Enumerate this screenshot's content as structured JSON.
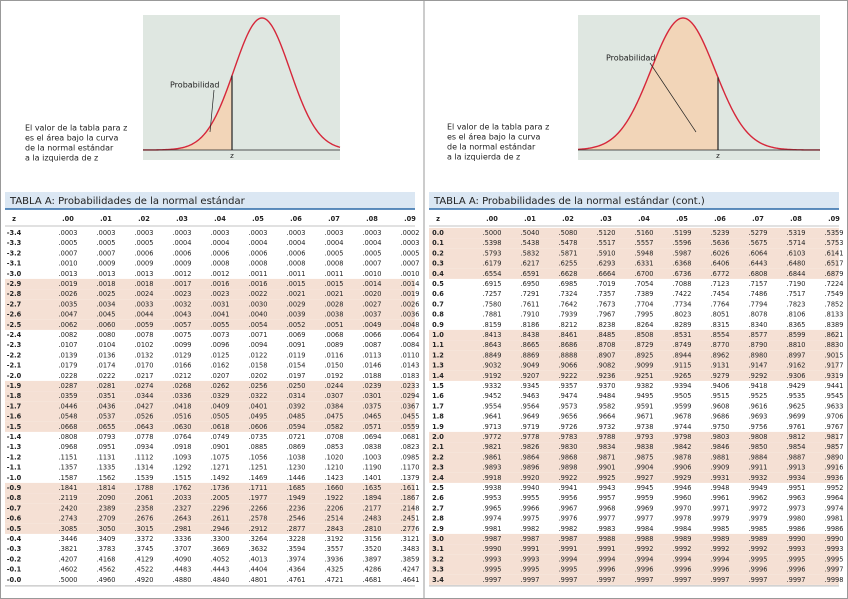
{
  "panels": [
    {
      "figure": {
        "label": "Probabilidad",
        "z_label": "z",
        "caption": [
          "El valor de la tabla para z",
          "es el área bajo la curva",
          "de la normal estándar",
          "a la izquierda de z"
        ]
      },
      "table": {
        "title": "TABLA A:  Probabilidades de la normal estándar",
        "header": [
          "z",
          ".00",
          ".01",
          ".02",
          ".03",
          ".04",
          ".05",
          ".06",
          ".07",
          ".08",
          ".09"
        ],
        "rows": [
          [
            "-3.4",
            ".0003",
            ".0003",
            ".0003",
            ".0003",
            ".0003",
            ".0003",
            ".0003",
            ".0003",
            ".0003",
            ".0002"
          ],
          [
            "-3.3",
            ".0005",
            ".0005",
            ".0005",
            ".0004",
            ".0004",
            ".0004",
            ".0004",
            ".0004",
            ".0004",
            ".0003"
          ],
          [
            "-3.2",
            ".0007",
            ".0007",
            ".0006",
            ".0006",
            ".0006",
            ".0006",
            ".0006",
            ".0005",
            ".0005",
            ".0005"
          ],
          [
            "-3.1",
            ".0010",
            ".0009",
            ".0009",
            ".0009",
            ".0008",
            ".0008",
            ".0008",
            ".0008",
            ".0007",
            ".0007"
          ],
          [
            "-3.0",
            ".0013",
            ".0013",
            ".0013",
            ".0012",
            ".0012",
            ".0011",
            ".0011",
            ".0011",
            ".0010",
            ".0010"
          ],
          [
            "-2.9",
            ".0019",
            ".0018",
            ".0018",
            ".0017",
            ".0016",
            ".0016",
            ".0015",
            ".0015",
            ".0014",
            ".0014"
          ],
          [
            "-2.8",
            ".0026",
            ".0025",
            ".0024",
            ".0023",
            ".0023",
            ".0022",
            ".0021",
            ".0021",
            ".0020",
            ".0019"
          ],
          [
            "-2.7",
            ".0035",
            ".0034",
            ".0033",
            ".0032",
            ".0031",
            ".0030",
            ".0029",
            ".0028",
            ".0027",
            ".0026"
          ],
          [
            "-2.6",
            ".0047",
            ".0045",
            ".0044",
            ".0043",
            ".0041",
            ".0040",
            ".0039",
            ".0038",
            ".0037",
            ".0036"
          ],
          [
            "-2.5",
            ".0062",
            ".0060",
            ".0059",
            ".0057",
            ".0055",
            ".0054",
            ".0052",
            ".0051",
            ".0049",
            ".0048"
          ],
          [
            "-2.4",
            ".0082",
            ".0080",
            ".0078",
            ".0075",
            ".0073",
            ".0071",
            ".0069",
            ".0068",
            ".0066",
            ".0064"
          ],
          [
            "-2.3",
            ".0107",
            ".0104",
            ".0102",
            ".0099",
            ".0096",
            ".0094",
            ".0091",
            ".0089",
            ".0087",
            ".0084"
          ],
          [
            "-2.2",
            ".0139",
            ".0136",
            ".0132",
            ".0129",
            ".0125",
            ".0122",
            ".0119",
            ".0116",
            ".0113",
            ".0110"
          ],
          [
            "-2.1",
            ".0179",
            ".0174",
            ".0170",
            ".0166",
            ".0162",
            ".0158",
            ".0154",
            ".0150",
            ".0146",
            ".0143"
          ],
          [
            "-2.0",
            ".0228",
            ".0222",
            ".0217",
            ".0212",
            ".0207",
            ".0202",
            ".0197",
            ".0192",
            ".0188",
            ".0183"
          ],
          [
            "-1.9",
            ".0287",
            ".0281",
            ".0274",
            ".0268",
            ".0262",
            ".0256",
            ".0250",
            ".0244",
            ".0239",
            ".0233"
          ],
          [
            "-1.8",
            ".0359",
            ".0351",
            ".0344",
            ".0336",
            ".0329",
            ".0322",
            ".0314",
            ".0307",
            ".0301",
            ".0294"
          ],
          [
            "-1.7",
            ".0446",
            ".0436",
            ".0427",
            ".0418",
            ".0409",
            ".0401",
            ".0392",
            ".0384",
            ".0375",
            ".0367"
          ],
          [
            "-1.6",
            ".0548",
            ".0537",
            ".0526",
            ".0516",
            ".0505",
            ".0495",
            ".0485",
            ".0475",
            ".0465",
            ".0455"
          ],
          [
            "-1.5",
            ".0668",
            ".0655",
            ".0643",
            ".0630",
            ".0618",
            ".0606",
            ".0594",
            ".0582",
            ".0571",
            ".0559"
          ],
          [
            "-1.4",
            ".0808",
            ".0793",
            ".0778",
            ".0764",
            ".0749",
            ".0735",
            ".0721",
            ".0708",
            ".0694",
            ".0681"
          ],
          [
            "-1.3",
            ".0968",
            ".0951",
            ".0934",
            ".0918",
            ".0901",
            ".0885",
            ".0869",
            ".0853",
            ".0838",
            ".0823"
          ],
          [
            "-1.2",
            ".1151",
            ".1131",
            ".1112",
            ".1093",
            ".1075",
            ".1056",
            ".1038",
            ".1020",
            ".1003",
            ".0985"
          ],
          [
            "-1.1",
            ".1357",
            ".1335",
            ".1314",
            ".1292",
            ".1271",
            ".1251",
            ".1230",
            ".1210",
            ".1190",
            ".1170"
          ],
          [
            "-1.0",
            ".1587",
            ".1562",
            ".1539",
            ".1515",
            ".1492",
            ".1469",
            ".1446",
            ".1423",
            ".1401",
            ".1379"
          ],
          [
            "-0.9",
            ".1841",
            ".1814",
            ".1788",
            ".1762",
            ".1736",
            ".1711",
            ".1685",
            ".1660",
            ".1635",
            ".1611"
          ],
          [
            "-0.8",
            ".2119",
            ".2090",
            ".2061",
            ".2033",
            ".2005",
            ".1977",
            ".1949",
            ".1922",
            ".1894",
            ".1867"
          ],
          [
            "-0.7",
            ".2420",
            ".2389",
            ".2358",
            ".2327",
            ".2296",
            ".2266",
            ".2236",
            ".2206",
            ".2177",
            ".2148"
          ],
          [
            "-0.6",
            ".2743",
            ".2709",
            ".2676",
            ".2643",
            ".2611",
            ".2578",
            ".2546",
            ".2514",
            ".2483",
            ".2451"
          ],
          [
            "-0.5",
            ".3085",
            ".3050",
            ".3015",
            ".2981",
            ".2946",
            ".2912",
            ".2877",
            ".2843",
            ".2810",
            ".2776"
          ],
          [
            "-0.4",
            ".3446",
            ".3409",
            ".3372",
            ".3336",
            ".3300",
            ".3264",
            ".3228",
            ".3192",
            ".3156",
            ".3121"
          ],
          [
            "-0.3",
            ".3821",
            ".3783",
            ".3745",
            ".3707",
            ".3669",
            ".3632",
            ".3594",
            ".3557",
            ".3520",
            ".3483"
          ],
          [
            "-0.2",
            ".4207",
            ".4168",
            ".4129",
            ".4090",
            ".4052",
            ".4013",
            ".3974",
            ".3936",
            ".3897",
            ".3859"
          ],
          [
            "-0.1",
            ".4602",
            ".4562",
            ".4522",
            ".4483",
            ".4443",
            ".4404",
            ".4364",
            ".4325",
            ".4286",
            ".4247"
          ],
          [
            "-0.0",
            ".5000",
            ".4960",
            ".4920",
            ".4880",
            ".4840",
            ".4801",
            ".4761",
            ".4721",
            ".4681",
            ".4641"
          ]
        ]
      }
    },
    {
      "figure": {
        "label": "Probabilidad",
        "z_label": "z",
        "caption": [
          "El valor de la tabla para z",
          "es el área bajo la curva",
          "de la normal estándar",
          "a la izquierda de z"
        ]
      },
      "table": {
        "title": "TABLA A: Probabilidades de la normal estándar (cont.)",
        "header": [
          "z",
          ".00",
          ".01",
          ".02",
          ".03",
          ".04",
          ".05",
          ".06",
          ".07",
          ".08",
          ".09"
        ],
        "rows": [
          [
            "0.0",
            ".5000",
            ".5040",
            ".5080",
            ".5120",
            ".5160",
            ".5199",
            ".5239",
            ".5279",
            ".5319",
            ".5359"
          ],
          [
            "0.1",
            ".5398",
            ".5438",
            ".5478",
            ".5517",
            ".5557",
            ".5596",
            ".5636",
            ".5675",
            ".5714",
            ".5753"
          ],
          [
            "0.2",
            ".5793",
            ".5832",
            ".5871",
            ".5910",
            ".5948",
            ".5987",
            ".6026",
            ".6064",
            ".6103",
            ".6141"
          ],
          [
            "0.3",
            ".6179",
            ".6217",
            ".6255",
            ".6293",
            ".6331",
            ".6368",
            ".6406",
            ".6443",
            ".6480",
            ".6517"
          ],
          [
            "0.4",
            ".6554",
            ".6591",
            ".6628",
            ".6664",
            ".6700",
            ".6736",
            ".6772",
            ".6808",
            ".6844",
            ".6879"
          ],
          [
            "0.5",
            ".6915",
            ".6950",
            ".6985",
            ".7019",
            ".7054",
            ".7088",
            ".7123",
            ".7157",
            ".7190",
            ".7224"
          ],
          [
            "0.6",
            ".7257",
            ".7291",
            ".7324",
            ".7357",
            ".7389",
            ".7422",
            ".7454",
            ".7486",
            ".7517",
            ".7549"
          ],
          [
            "0.7",
            ".7580",
            ".7611",
            ".7642",
            ".7673",
            ".7704",
            ".7734",
            ".7764",
            ".7794",
            ".7823",
            ".7852"
          ],
          [
            "0.8",
            ".7881",
            ".7910",
            ".7939",
            ".7967",
            ".7995",
            ".8023",
            ".8051",
            ".8078",
            ".8106",
            ".8133"
          ],
          [
            "0.9",
            ".8159",
            ".8186",
            ".8212",
            ".8238",
            ".8264",
            ".8289",
            ".8315",
            ".8340",
            ".8365",
            ".8389"
          ],
          [
            "1.0",
            ".8413",
            ".8438",
            ".8461",
            ".8485",
            ".8508",
            ".8531",
            ".8554",
            ".8577",
            ".8599",
            ".8621"
          ],
          [
            "1.1",
            ".8643",
            ".8665",
            ".8686",
            ".8708",
            ".8729",
            ".8749",
            ".8770",
            ".8790",
            ".8810",
            ".8830"
          ],
          [
            "1.2",
            ".8849",
            ".8869",
            ".8888",
            ".8907",
            ".8925",
            ".8944",
            ".8962",
            ".8980",
            ".8997",
            ".9015"
          ],
          [
            "1.3",
            ".9032",
            ".9049",
            ".9066",
            ".9082",
            ".9099",
            ".9115",
            ".9131",
            ".9147",
            ".9162",
            ".9177"
          ],
          [
            "1.4",
            ".9192",
            ".9207",
            ".9222",
            ".9236",
            ".9251",
            ".9265",
            ".9279",
            ".9292",
            ".9306",
            ".9319"
          ],
          [
            "1.5",
            ".9332",
            ".9345",
            ".9357",
            ".9370",
            ".9382",
            ".9394",
            ".9406",
            ".9418",
            ".9429",
            ".9441"
          ],
          [
            "1.6",
            ".9452",
            ".9463",
            ".9474",
            ".9484",
            ".9495",
            ".9505",
            ".9515",
            ".9525",
            ".9535",
            ".9545"
          ],
          [
            "1.7",
            ".9554",
            ".9564",
            ".9573",
            ".9582",
            ".9591",
            ".9599",
            ".9608",
            ".9616",
            ".9625",
            ".9633"
          ],
          [
            "1.8",
            ".9641",
            ".9649",
            ".9656",
            ".9664",
            ".9671",
            ".9678",
            ".9686",
            ".9693",
            ".9699",
            ".9706"
          ],
          [
            "1.9",
            ".9713",
            ".9719",
            ".9726",
            ".9732",
            ".9738",
            ".9744",
            ".9750",
            ".9756",
            ".9761",
            ".9767"
          ],
          [
            "2.0",
            ".9772",
            ".9778",
            ".9783",
            ".9788",
            ".9793",
            ".9798",
            ".9803",
            ".9808",
            ".9812",
            ".9817"
          ],
          [
            "2.1",
            ".9821",
            ".9826",
            ".9830",
            ".9834",
            ".9838",
            ".9842",
            ".9846",
            ".9850",
            ".9854",
            ".9857"
          ],
          [
            "2.2",
            ".9861",
            ".9864",
            ".9868",
            ".9871",
            ".9875",
            ".9878",
            ".9881",
            ".9884",
            ".9887",
            ".9890"
          ],
          [
            "2.3",
            ".9893",
            ".9896",
            ".9898",
            ".9901",
            ".9904",
            ".9906",
            ".9909",
            ".9911",
            ".9913",
            ".9916"
          ],
          [
            "2.4",
            ".9918",
            ".9920",
            ".9922",
            ".9925",
            ".9927",
            ".9929",
            ".9931",
            ".9932",
            ".9934",
            ".9936"
          ],
          [
            "2.5",
            ".9938",
            ".9940",
            ".9941",
            ".9943",
            ".9945",
            ".9946",
            ".9948",
            ".9949",
            ".9951",
            ".9952"
          ],
          [
            "2.6",
            ".9953",
            ".9955",
            ".9956",
            ".9957",
            ".9959",
            ".9960",
            ".9961",
            ".9962",
            ".9963",
            ".9964"
          ],
          [
            "2.7",
            ".9965",
            ".9966",
            ".9967",
            ".9968",
            ".9969",
            ".9970",
            ".9971",
            ".9972",
            ".9973",
            ".9974"
          ],
          [
            "2.8",
            ".9974",
            ".9975",
            ".9976",
            ".9977",
            ".9977",
            ".9978",
            ".9979",
            ".9979",
            ".9980",
            ".9981"
          ],
          [
            "2.9",
            ".9981",
            ".9982",
            ".9982",
            ".9983",
            ".9984",
            ".9984",
            ".9985",
            ".9985",
            ".9986",
            ".9986"
          ],
          [
            "3.0",
            ".9987",
            ".9987",
            ".9987",
            ".9988",
            ".9988",
            ".9989",
            ".9989",
            ".9989",
            ".9990",
            ".9990"
          ],
          [
            "3.1",
            ".9990",
            ".9991",
            ".9991",
            ".9991",
            ".9992",
            ".9992",
            ".9992",
            ".9992",
            ".9993",
            ".9993"
          ],
          [
            "3.2",
            ".9993",
            ".9993",
            ".9994",
            ".9994",
            ".9994",
            ".9994",
            ".9994",
            ".9995",
            ".9995",
            ".9995"
          ],
          [
            "3.3",
            ".9995",
            ".9995",
            ".9995",
            ".9996",
            ".9996",
            ".9996",
            ".9996",
            ".9996",
            ".9996",
            ".9997"
          ],
          [
            "3.4",
            ".9997",
            ".9997",
            ".9997",
            ".9997",
            ".9997",
            ".9997",
            ".9997",
            ".9997",
            ".9997",
            ".9998"
          ]
        ]
      }
    }
  ]
}
